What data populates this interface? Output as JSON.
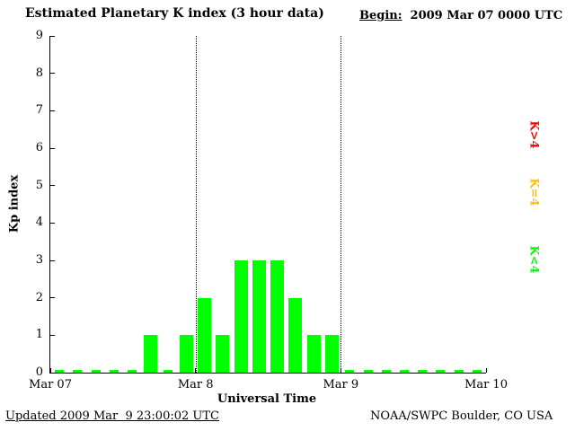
{
  "header": {
    "title": "Estimated Planetary K index (3 hour data)",
    "begin_label": "Begin:",
    "begin_value": "2009 Mar 07 0000 UTC"
  },
  "chart_data": {
    "type": "bar",
    "title": "Estimated Planetary K index (3 hour data)",
    "xlabel": "Universal Time",
    "ylabel": "Kp index",
    "ylim": [
      0,
      9
    ],
    "y_ticks": [
      0,
      1,
      2,
      3,
      4,
      5,
      6,
      7,
      8,
      9
    ],
    "x_ticks": [
      "Mar 07",
      "Mar 8",
      "Mar 9",
      "Mar 10"
    ],
    "grid_lines_at": [
      "Mar 8",
      "Mar 9"
    ],
    "interval_hours": 3,
    "days": [
      "Mar 07",
      "Mar 8",
      "Mar 9"
    ],
    "values": [
      0,
      0,
      0,
      0,
      0,
      1,
      0,
      1,
      2,
      1,
      3,
      3,
      3,
      2,
      1,
      1,
      0,
      0,
      0,
      0,
      0,
      0,
      0,
      0
    ],
    "bar_color": "#00ff00",
    "legend_position": "right"
  },
  "legend": [
    {
      "label": "K>4",
      "color": "#ff0000"
    },
    {
      "label": "K=4",
      "color": "#ffc000"
    },
    {
      "label": "K<4",
      "color": "#00ff00"
    }
  ],
  "footer": {
    "updated": "Updated 2009 Mar  9 23:00:02 UTC",
    "source": "NOAA/SWPC Boulder, CO USA"
  }
}
